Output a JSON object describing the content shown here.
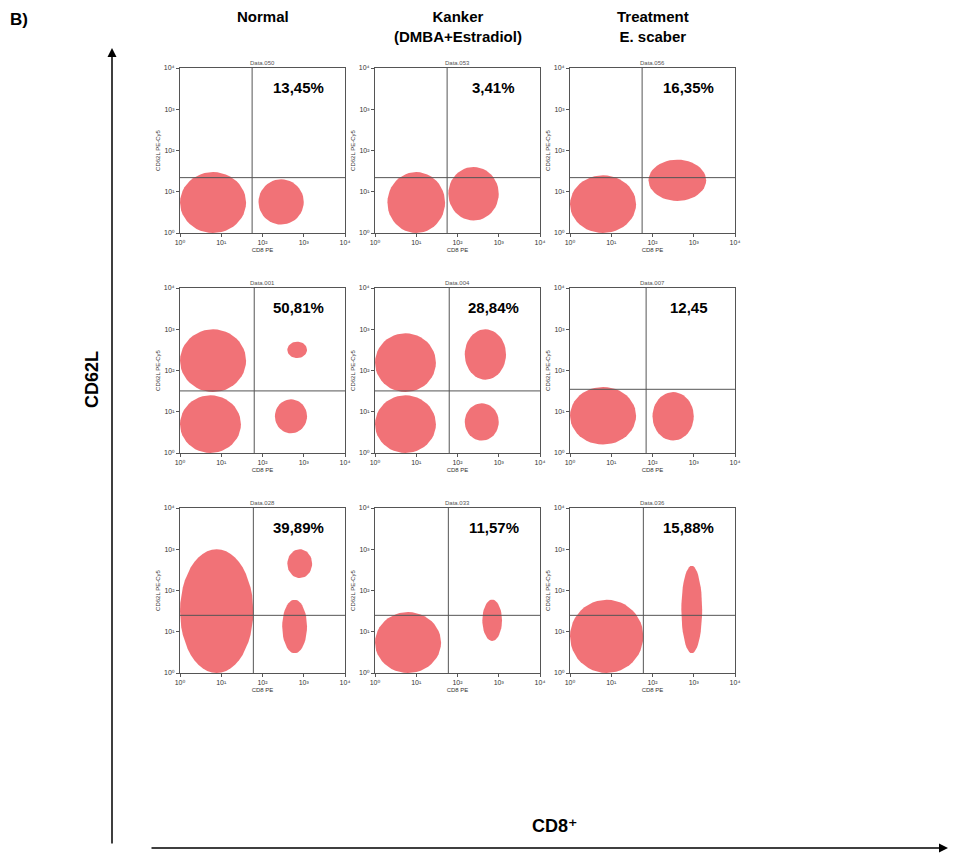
{
  "figure": {
    "label": "B)",
    "x_title": "CD8⁺",
    "y_title": "CD62L",
    "columns": [
      "Normal",
      "Kanker (DMBA+Estradiol)",
      "Treatment E. scaber"
    ]
  },
  "chart_data": [
    {
      "type": "scatter",
      "title": "Data.050",
      "x_label": "CD8 PE",
      "y_label": "CD62L PE-Cy5",
      "log": true,
      "xlim": [
        1,
        10000
      ],
      "ylim": [
        1,
        10000
      ],
      "xticks": [
        {
          "value": 1,
          "label": "10⁰"
        },
        {
          "value": 10,
          "label": "10¹"
        },
        {
          "value": 100,
          "label": "10²"
        },
        {
          "value": 1000,
          "label": "10³"
        },
        {
          "value": 10000,
          "label": "10⁴"
        }
      ],
      "yticks": [
        {
          "value": 1,
          "label": "10⁰"
        },
        {
          "value": 10,
          "label": "10¹"
        },
        {
          "value": 100,
          "label": "10²"
        },
        {
          "value": 1000,
          "label": "10³"
        },
        {
          "value": 10000,
          "label": "10⁴"
        }
      ],
      "color": "#e8141c",
      "gates": {
        "x": 56,
        "y": 22
      },
      "quadrant_label": "13,45%",
      "clusters": [
        {
          "x": [
            1,
            40
          ],
          "y": [
            1,
            30
          ]
        },
        {
          "x": [
            80,
            1000
          ],
          "y": [
            1.6,
            20
          ]
        }
      ]
    },
    {
      "type": "scatter",
      "title": "Data.053",
      "x_label": "CD8 PE",
      "y_label": "CD62L PE-Cy5",
      "log": true,
      "xlim": [
        1,
        10000
      ],
      "ylim": [
        1,
        10000
      ],
      "xticks": [
        {
          "value": 1,
          "label": "10⁰"
        },
        {
          "value": 10,
          "label": "10¹"
        },
        {
          "value": 100,
          "label": "10²"
        },
        {
          "value": 1000,
          "label": "10³"
        },
        {
          "value": 10000,
          "label": "10⁴"
        }
      ],
      "yticks": [
        {
          "value": 1,
          "label": "10⁰"
        },
        {
          "value": 10,
          "label": "10¹"
        },
        {
          "value": 100,
          "label": "10²"
        },
        {
          "value": 1000,
          "label": "10³"
        },
        {
          "value": 10000,
          "label": "10⁴"
        }
      ],
      "color": "#e8141c",
      "gates": {
        "x": 56,
        "y": 22
      },
      "quadrant_label": "3,41%",
      "clusters": [
        {
          "x": [
            2,
            50
          ],
          "y": [
            1,
            30
          ]
        },
        {
          "x": [
            60,
            1000
          ],
          "y": [
            2,
            40
          ]
        }
      ]
    },
    {
      "type": "scatter",
      "title": "Data.056",
      "x_label": "CD8 PE",
      "y_label": "CD62L PE-Cy5",
      "log": true,
      "xlim": [
        1,
        10000
      ],
      "ylim": [
        1,
        10000
      ],
      "xticks": [
        {
          "value": 1,
          "label": "10⁰"
        },
        {
          "value": 10,
          "label": "10¹"
        },
        {
          "value": 100,
          "label": "10²"
        },
        {
          "value": 1000,
          "label": "10³"
        },
        {
          "value": 10000,
          "label": "10⁴"
        }
      ],
      "yticks": [
        {
          "value": 1,
          "label": "10⁰"
        },
        {
          "value": 10,
          "label": "10¹"
        },
        {
          "value": 100,
          "label": "10²"
        },
        {
          "value": 1000,
          "label": "10³"
        },
        {
          "value": 10000,
          "label": "10⁴"
        }
      ],
      "color": "#e8141c",
      "gates": {
        "x": 56,
        "y": 22
      },
      "quadrant_label": "16,35%",
      "clusters": [
        {
          "x": [
            1,
            40
          ],
          "y": [
            1,
            25
          ]
        },
        {
          "x": [
            80,
            2000
          ],
          "y": [
            6,
            60
          ]
        }
      ]
    },
    {
      "type": "scatter",
      "title": "Data.001",
      "x_label": "CD8 PE",
      "y_label": "CD62L PE-Cy5",
      "log": true,
      "xlim": [
        1,
        10000
      ],
      "ylim": [
        1,
        10000
      ],
      "xticks": [
        {
          "value": 1,
          "label": "10⁰"
        },
        {
          "value": 10,
          "label": "10¹"
        },
        {
          "value": 100,
          "label": "10²"
        },
        {
          "value": 1000,
          "label": "10³"
        },
        {
          "value": 10000,
          "label": "10⁴"
        }
      ],
      "yticks": [
        {
          "value": 1,
          "label": "10⁰"
        },
        {
          "value": 10,
          "label": "10¹"
        },
        {
          "value": 100,
          "label": "10²"
        },
        {
          "value": 1000,
          "label": "10³"
        },
        {
          "value": 10000,
          "label": "10⁴"
        }
      ],
      "color": "#e8141c",
      "gates": {
        "x": 63,
        "y": 32
      },
      "quadrant_label": "50,81%",
      "clusters": [
        {
          "x": [
            1,
            40
          ],
          "y": [
            30,
            1000
          ]
        },
        {
          "x": [
            1,
            30
          ],
          "y": [
            1,
            25
          ]
        },
        {
          "x": [
            400,
            1200
          ],
          "y": [
            200,
            500
          ]
        },
        {
          "x": [
            200,
            1200
          ],
          "y": [
            3,
            20
          ]
        }
      ]
    },
    {
      "type": "scatter",
      "title": "Data.004",
      "x_label": "CD8 PE",
      "y_label": "CD62L PE-Cy5",
      "log": true,
      "xlim": [
        1,
        10000
      ],
      "ylim": [
        1,
        10000
      ],
      "xticks": [
        {
          "value": 1,
          "label": "10⁰"
        },
        {
          "value": 10,
          "label": "10¹"
        },
        {
          "value": 100,
          "label": "10²"
        },
        {
          "value": 1000,
          "label": "10³"
        },
        {
          "value": 10000,
          "label": "10⁴"
        }
      ],
      "yticks": [
        {
          "value": 1,
          "label": "10⁰"
        },
        {
          "value": 10,
          "label": "10¹"
        },
        {
          "value": 100,
          "label": "10²"
        },
        {
          "value": 1000,
          "label": "10³"
        },
        {
          "value": 10000,
          "label": "10⁴"
        }
      ],
      "color": "#e8141c",
      "gates": {
        "x": 63,
        "y": 32
      },
      "quadrant_label": "28,84%",
      "clusters": [
        {
          "x": [
            1,
            30
          ],
          "y": [
            30,
            800
          ]
        },
        {
          "x": [
            1,
            30
          ],
          "y": [
            1,
            25
          ]
        },
        {
          "x": [
            150,
            1500
          ],
          "y": [
            60,
            1000
          ]
        },
        {
          "x": [
            150,
            1000
          ],
          "y": [
            2,
            16
          ]
        }
      ]
    },
    {
      "type": "scatter",
      "title": "Data.007",
      "x_label": "CD8 PE",
      "y_label": "CD62L PE-Cy5",
      "log": true,
      "xlim": [
        1,
        10000
      ],
      "ylim": [
        1,
        10000
      ],
      "xticks": [
        {
          "value": 1,
          "label": "10⁰"
        },
        {
          "value": 10,
          "label": "10¹"
        },
        {
          "value": 100,
          "label": "10²"
        },
        {
          "value": 1000,
          "label": "10³"
        },
        {
          "value": 10000,
          "label": "10⁴"
        }
      ],
      "yticks": [
        {
          "value": 1,
          "label": "10⁰"
        },
        {
          "value": 10,
          "label": "10¹"
        },
        {
          "value": 100,
          "label": "10²"
        },
        {
          "value": 1000,
          "label": "10³"
        },
        {
          "value": 10000,
          "label": "10⁴"
        }
      ],
      "color": "#e8141c",
      "gates": {
        "x": 70,
        "y": 35
      },
      "quadrant_label": "12,45",
      "clusters": [
        {
          "x": [
            1,
            40
          ],
          "y": [
            1.6,
            40
          ]
        },
        {
          "x": [
            100,
            1000
          ],
          "y": [
            2,
            30
          ]
        }
      ]
    },
    {
      "type": "scatter",
      "title": "Data.028",
      "x_label": "CD8 PE",
      "y_label": "CD62L PE-Cy5",
      "log": true,
      "xlim": [
        1,
        10000
      ],
      "ylim": [
        1,
        10000
      ],
      "xticks": [
        {
          "value": 1,
          "label": "10⁰"
        },
        {
          "value": 10,
          "label": "10¹"
        },
        {
          "value": 100,
          "label": "10²"
        },
        {
          "value": 1000,
          "label": "10³"
        },
        {
          "value": 10000,
          "label": "10⁴"
        }
      ],
      "yticks": [
        {
          "value": 1,
          "label": "10⁰"
        },
        {
          "value": 10,
          "label": "10¹"
        },
        {
          "value": 100,
          "label": "10²"
        },
        {
          "value": 1000,
          "label": "10³"
        },
        {
          "value": 10000,
          "label": "10⁴"
        }
      ],
      "color": "#e8141c",
      "gates": {
        "x": 60,
        "y": 25
      },
      "quadrant_label": "39,89%",
      "clusters": [
        {
          "x": [
            1,
            60
          ],
          "y": [
            1,
            1000
          ]
        },
        {
          "x": [
            400,
            1600
          ],
          "y": [
            200,
            1000
          ]
        },
        {
          "x": [
            300,
            1200
          ],
          "y": [
            3,
            60
          ]
        }
      ]
    },
    {
      "type": "scatter",
      "title": "Data.033",
      "x_label": "CD8 PE",
      "y_label": "CD62L PE-Cy5",
      "log": true,
      "xlim": [
        1,
        10000
      ],
      "ylim": [
        1,
        10000
      ],
      "xticks": [
        {
          "value": 1,
          "label": "10⁰"
        },
        {
          "value": 10,
          "label": "10¹"
        },
        {
          "value": 100,
          "label": "10²"
        },
        {
          "value": 1000,
          "label": "10³"
        },
        {
          "value": 10000,
          "label": "10⁴"
        }
      ],
      "yticks": [
        {
          "value": 1,
          "label": "10⁰"
        },
        {
          "value": 10,
          "label": "10¹"
        },
        {
          "value": 100,
          "label": "10²"
        },
        {
          "value": 1000,
          "label": "10³"
        },
        {
          "value": 10000,
          "label": "10⁴"
        }
      ],
      "color": "#e8141c",
      "gates": {
        "x": 60,
        "y": 25
      },
      "quadrant_label": "11,57%",
      "clusters": [
        {
          "x": [
            1,
            40
          ],
          "y": [
            1,
            30
          ]
        },
        {
          "x": [
            400,
            1200
          ],
          "y": [
            6,
            60
          ]
        }
      ]
    },
    {
      "type": "scatter",
      "title": "Data.036",
      "x_label": "CD8 PE",
      "y_label": "CD62L PE-Cy5",
      "log": true,
      "xlim": [
        1,
        10000
      ],
      "ylim": [
        1,
        10000
      ],
      "xticks": [
        {
          "value": 1,
          "label": "10⁰"
        },
        {
          "value": 10,
          "label": "10¹"
        },
        {
          "value": 100,
          "label": "10²"
        },
        {
          "value": 1000,
          "label": "10³"
        },
        {
          "value": 10000,
          "label": "10⁴"
        }
      ],
      "yticks": [
        {
          "value": 1,
          "label": "10⁰"
        },
        {
          "value": 10,
          "label": "10¹"
        },
        {
          "value": 100,
          "label": "10²"
        },
        {
          "value": 1000,
          "label": "10³"
        },
        {
          "value": 10000,
          "label": "10⁴"
        }
      ],
      "color": "#e8141c",
      "gates": {
        "x": 60,
        "y": 25
      },
      "quadrant_label": "15,88%",
      "clusters": [
        {
          "x": [
            1,
            60
          ],
          "y": [
            1,
            60
          ]
        },
        {
          "x": [
            500,
            1600
          ],
          "y": [
            3,
            400
          ]
        }
      ]
    }
  ]
}
